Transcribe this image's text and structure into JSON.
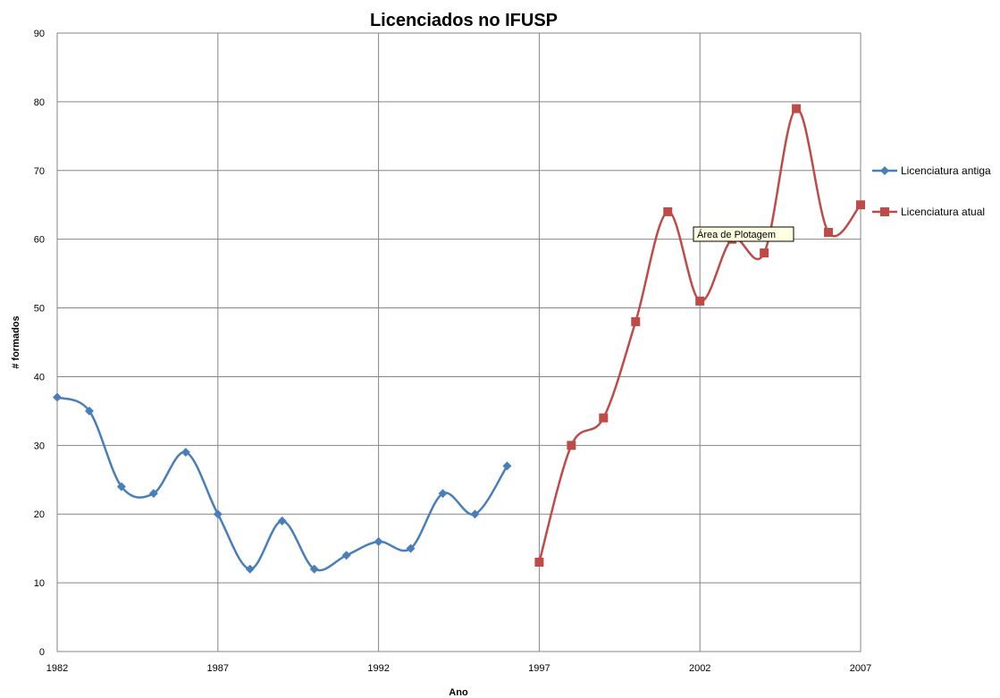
{
  "chart_data": {
    "type": "line",
    "title": "Licenciados no IFUSP",
    "xlabel": "Ano",
    "ylabel": "# formados",
    "xlim": [
      1982,
      2007
    ],
    "ylim": [
      0,
      90
    ],
    "x_ticks": [
      1982,
      1987,
      1992,
      1997,
      2002,
      2007
    ],
    "y_ticks": [
      0,
      10,
      20,
      30,
      40,
      50,
      60,
      70,
      80,
      90
    ],
    "grid": true,
    "smooth": true,
    "legend_position": "right",
    "series": [
      {
        "name": "Licenciatura antiga",
        "color": "#4a7ebb",
        "marker": "diamond",
        "x": [
          1982,
          1983,
          1984,
          1985,
          1986,
          1987,
          1988,
          1989,
          1990,
          1991,
          1992,
          1993,
          1994,
          1995,
          1996
        ],
        "y": [
          37,
          35,
          24,
          23,
          29,
          20,
          12,
          19,
          12,
          14,
          16,
          15,
          23,
          20,
          27
        ]
      },
      {
        "name": "Licenciatura atual",
        "color": "#be4b48",
        "marker": "square",
        "x": [
          1997,
          1998,
          1999,
          2000,
          2001,
          2002,
          2003,
          2004,
          2005,
          2006,
          2007
        ],
        "y": [
          13,
          30,
          34,
          48,
          64,
          51,
          60,
          58,
          79,
          61,
          65
        ]
      }
    ],
    "annotation": {
      "text": "Área de Plotagem"
    }
  }
}
